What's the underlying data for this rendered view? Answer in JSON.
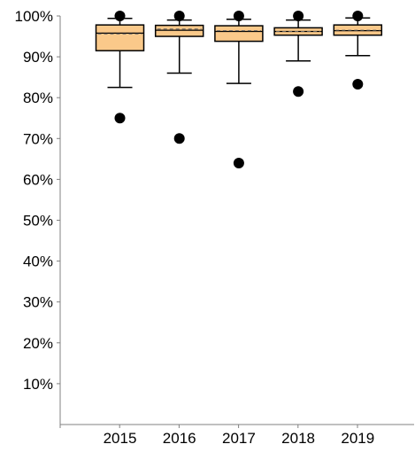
{
  "chart_data": {
    "type": "box",
    "categories": [
      "2015",
      "2016",
      "2017",
      "2018",
      "2019"
    ],
    "y_tick_labels": [
      "10%",
      "20%",
      "30%",
      "40%",
      "50%",
      "60%",
      "70%",
      "80%",
      "90%",
      "100%"
    ],
    "ylim": [
      0,
      100
    ],
    "grid": false,
    "legend": "none",
    "boxes": [
      {
        "category": "2015",
        "whisker_low": 82.5,
        "q1": 91.5,
        "median": 95.8,
        "mean": 95.6,
        "q3": 97.8,
        "whisker_high": 99.4,
        "outliers": [
          100,
          75
        ]
      },
      {
        "category": "2016",
        "whisker_low": 86.0,
        "q1": 95.0,
        "median": 96.5,
        "mean": 96.8,
        "q3": 97.7,
        "whisker_high": 99.0,
        "outliers": [
          100,
          70
        ]
      },
      {
        "category": "2017",
        "whisker_low": 83.5,
        "q1": 93.8,
        "median": 96.2,
        "mean": 96.4,
        "q3": 97.6,
        "whisker_high": 99.2,
        "outliers": [
          100,
          64
        ]
      },
      {
        "category": "2018",
        "whisker_low": 89.0,
        "q1": 95.3,
        "median": 96.2,
        "mean": 96.2,
        "q3": 97.1,
        "whisker_high": 99.0,
        "outliers": [
          100,
          81.5
        ]
      },
      {
        "category": "2019",
        "whisker_low": 90.3,
        "q1": 95.3,
        "median": 96.4,
        "mean": 96.5,
        "q3": 97.8,
        "whisker_high": 99.5,
        "outliers": [
          100,
          83.3
        ]
      }
    ],
    "colors": {
      "box_fill": "#FAC98A",
      "stroke": "#000000",
      "axis": "#808080",
      "mean_line": "#666666"
    }
  }
}
